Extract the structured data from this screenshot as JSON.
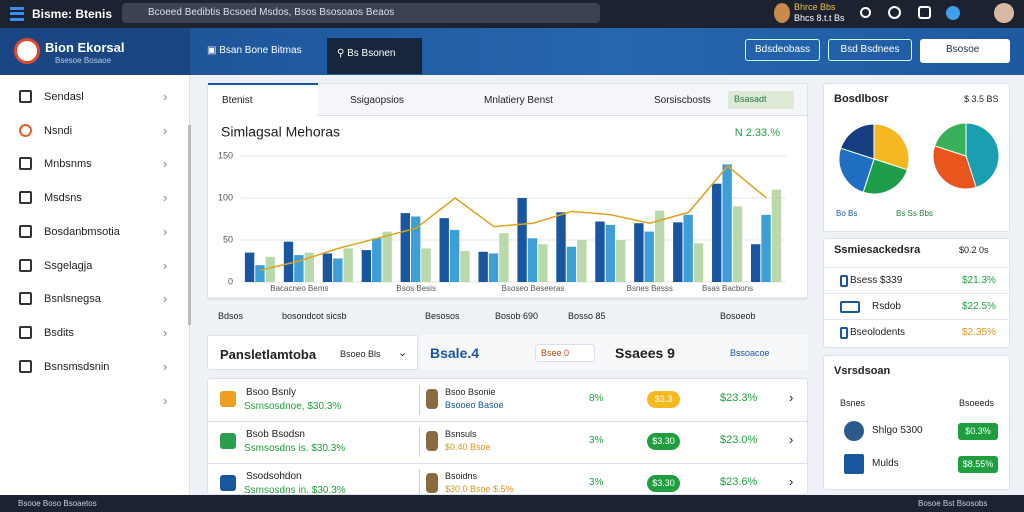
{
  "topbar": {
    "app": "Bisme: Btenis",
    "address": "Bcoeed Bedibtis Bcsoed Msdos, Bsos Bsosoaos Beaos",
    "user": "Bhrce Bbs",
    "user_sub": "Bhcs 8.t.t Bs"
  },
  "header": {
    "brand": "Bion Ekorsal",
    "brand_sub": "Bsesoe Bosaoe",
    "tabs": [
      "Bsan Bone Bitmas",
      "Bs Bsonen"
    ],
    "buttons": [
      "Bdsdeobass",
      "Bsd Bsdnees",
      "Bsosoe"
    ]
  },
  "sidebar": [
    "Sendasl",
    "Nsndi",
    "Mnbsnms",
    "Msdsns",
    "Bosdanbmsotia",
    "Ssgelagja",
    "Bsnlsnegsa",
    "Bsdits",
    "Bsnsmsdsnin"
  ],
  "chart_tabs": [
    "Btenist",
    "Ssigaopsios",
    "Mnlatiery Benst",
    "Sorsiscbosts",
    "Bsasadt"
  ],
  "chart_data": {
    "type": "bar",
    "title": "Simlagsal Mehoras",
    "annotation": "N 2.33.%",
    "categories": [
      null,
      "Bacacneo Bems",
      null,
      null,
      "Bsos Besis",
      null,
      null,
      "Bsoseo Beseeras",
      null,
      null,
      "Bsnes Besss",
      null,
      "Bsas Bacbons",
      null
    ],
    "ylim": [
      0,
      150
    ],
    "yticks": [
      0,
      50,
      100,
      150
    ],
    "grid": true,
    "series": [
      {
        "name": "A",
        "color": "#1a56a0",
        "values": [
          35,
          48,
          34,
          38,
          82,
          76,
          36,
          100,
          83,
          72,
          70,
          71,
          117,
          45
        ]
      },
      {
        "name": "B",
        "color": "#3e9fd6",
        "values": [
          20,
          32,
          28,
          52,
          78,
          62,
          34,
          52,
          42,
          68,
          60,
          80,
          140,
          80
        ]
      },
      {
        "name": "C",
        "color": "#b9d9ab",
        "values": [
          30,
          35,
          40,
          60,
          40,
          37,
          58,
          45,
          50,
          50,
          85,
          46,
          90,
          110
        ]
      },
      {
        "name": "D",
        "type": "line",
        "color": "#d9a520",
        "values": [
          14,
          25,
          40,
          52,
          64,
          100,
          66,
          70,
          84,
          80,
          70,
          83,
          138,
          100
        ]
      }
    ]
  },
  "filters": [
    "Bdsos",
    "bosondcot sicsb",
    "Besosos",
    "Bosob 690",
    "Bosso 85",
    "Bosoeob"
  ],
  "summary": {
    "title": "Pansletlamtoba",
    "sub": "Bsoeo Bls",
    "metric": "Bsale.4",
    "pill": "Bsee 0",
    "sales": "Ssaees 9",
    "link": "Bssoacoe"
  },
  "rows": [
    {
      "name": "Bsoo Bsnly",
      "sub": "Ssmsosdnoe, $30.3%",
      "person": "Bsoo Bsonie",
      "person_sub": "Bsooeo Basoe",
      "pct": "8%",
      "badge": "$3.3",
      "change": "$23.3%"
    },
    {
      "name": "Bsob Bsodsn",
      "sub": "Ssmsosdns is. $30.3%",
      "person": "Bsnsuls",
      "person_sub": "$0.40 Bsoe",
      "pct": "3%",
      "badge": "$3.30",
      "change": "$23.0%"
    },
    {
      "name": "Ssodsohdon",
      "sub": "Ssmsosdns in. $30.3%",
      "person": "Bsoidns",
      "person_sub": "$30.0 Bsoe  $.5%",
      "pct": "3%",
      "badge": "$3.30",
      "change": "$23.6%"
    }
  ],
  "pie_card": {
    "title": "Bosdlbosr",
    "value": "$ 3.5 BS",
    "legend": [
      "Bo Bs",
      "Bs Ss Bbs"
    ],
    "pies": [
      {
        "values": [
          30,
          25,
          25,
          20
        ],
        "colors": [
          "#f5b820",
          "#1d9d4a",
          "#1f6fc2",
          "#163d80"
        ]
      },
      {
        "values": [
          45,
          35,
          20
        ],
        "colors": [
          "#1a9fb0",
          "#e8561e",
          "#3bb05a"
        ]
      }
    ]
  },
  "stats_card": {
    "title": "Ssmiesackedsra",
    "value": "$0.2 0s",
    "rows": [
      {
        "label": "Bsess $339",
        "value": "$21.3%"
      },
      {
        "label": "Rsdob",
        "value": "$22.5%"
      },
      {
        "label": "Bseolodents",
        "value": "$2.35%"
      }
    ]
  },
  "people_card": {
    "title": "Vsrsdsoan",
    "col1": "Bsnes",
    "col2": "Bsoeeds",
    "rows": [
      {
        "label": "Shlgo 5300",
        "badge": "$0.3%"
      },
      {
        "label": "Mulds",
        "badge": "$8.55%"
      }
    ]
  },
  "footer": {
    "left": "Bsooe Boso Bsoaetos",
    "right": "Bosoe Bst Bsosobs"
  }
}
